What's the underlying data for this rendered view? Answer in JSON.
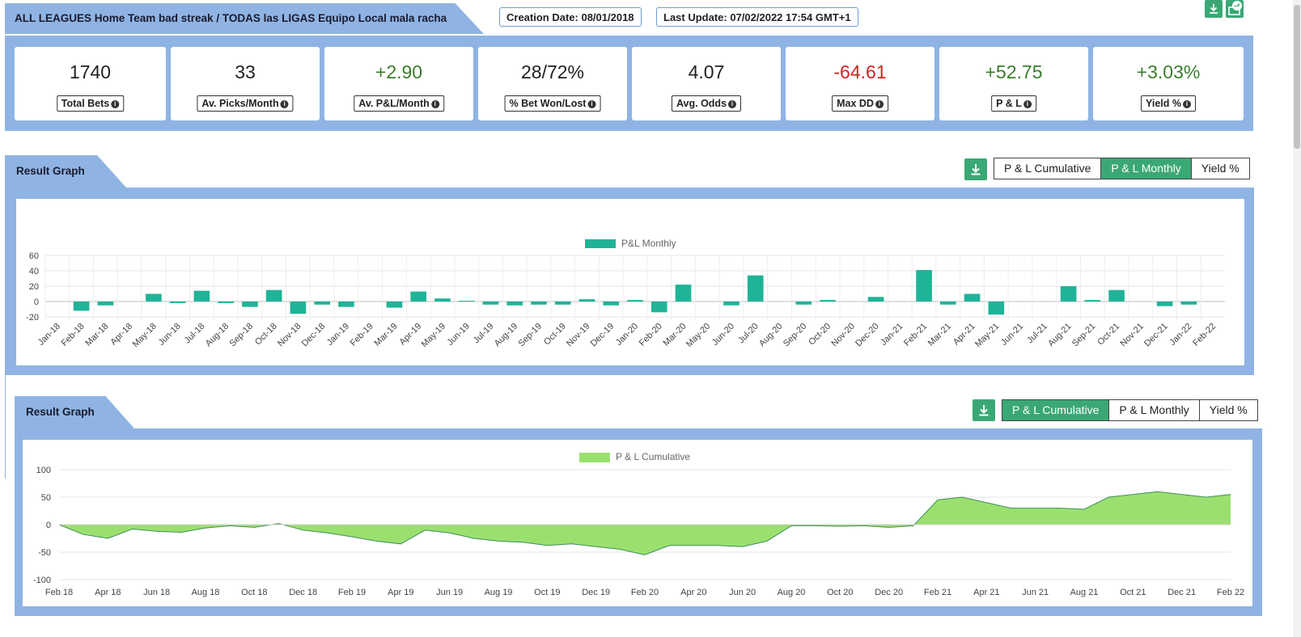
{
  "header": {
    "title": "ALL LEAGUES Home Team bad streak / TODAS las LIGAS Equipo Local mala racha",
    "creation_date": "Creation Date: 08/01/2018",
    "last_update": "Last Update: 07/02/2022 17:54 GMT+1"
  },
  "icons": {
    "download": "download-icon",
    "check": "check-icon",
    "info": "info-icon"
  },
  "colors": {
    "accent": "#3aa874",
    "band": "#8fb4e3",
    "bar": "#1fb497",
    "area": "#9be06f",
    "negative": "#d22121",
    "positive": "#3a7d2c"
  },
  "stats": [
    {
      "value": "1740",
      "label": "Total Bets",
      "color": "#222222"
    },
    {
      "value": "33",
      "label": "Av. Picks/Month",
      "color": "#222222"
    },
    {
      "value": "+2.90",
      "label": "Av. P&L/Month",
      "color": "#3a7d2c"
    },
    {
      "value": "28/72%",
      "label": "% Bet Won/Lost",
      "color": "#222222"
    },
    {
      "value": "4.07",
      "label": "Avg. Odds",
      "color": "#222222"
    },
    {
      "value": "-64.61",
      "label": "Max DD",
      "color": "#d22121"
    },
    {
      "value": "+52.75",
      "label": "P & L",
      "color": "#3a7d2c"
    },
    {
      "value": "+3.03%",
      "label": "Yield %",
      "color": "#3a7d2c"
    }
  ],
  "graph1": {
    "title": "Result Graph",
    "tabs": [
      {
        "label": "P & L Cumulative",
        "active": false
      },
      {
        "label": "P & L Monthly",
        "active": true
      },
      {
        "label": "Yield %",
        "active": false
      }
    ]
  },
  "graph2": {
    "title": "Result Graph",
    "tabs": [
      {
        "label": "P & L Cumulative",
        "active": true
      },
      {
        "label": "P & L Monthly",
        "active": false
      },
      {
        "label": "Yield %",
        "active": false
      }
    ]
  },
  "chart_data": [
    {
      "type": "bar",
      "legend": "P&L Monthly",
      "categories": [
        "Jan-18",
        "Feb-18",
        "Mar-18",
        "Apr-18",
        "May-18",
        "Jun-18",
        "Jul-18",
        "Aug-18",
        "Sep-18",
        "Oct-18",
        "Nov-18",
        "Dec-18",
        "Jan-19",
        "Feb-19",
        "Mar-19",
        "Apr-19",
        "May-19",
        "Jun-19",
        "Jul-19",
        "Aug-19",
        "Sep-19",
        "Oct-19",
        "Nov-19",
        "Dec-19",
        "Jan-20",
        "Feb-20",
        "Mar-20",
        "May-20",
        "Jun-20",
        "Jul-20",
        "Aug-20",
        "Sep-20",
        "Oct-20",
        "Nov-20",
        "Dec-20",
        "Jan-21",
        "Feb-21",
        "Mar-21",
        "Apr-21",
        "May-21",
        "Jun-21",
        "Jul-21",
        "Aug-21",
        "Sep-21",
        "Oct-21",
        "Nov-21",
        "Dec-21",
        "Jan-22",
        "Feb-22"
      ],
      "values": [
        0,
        -12,
        -5,
        0,
        10,
        -2,
        14,
        -2,
        -7,
        15,
        -16,
        -4,
        -7,
        0,
        -8,
        13,
        4,
        1,
        -4,
        -5,
        -4,
        -4,
        3,
        -5,
        2,
        -14,
        22,
        0,
        -5,
        34,
        0,
        -4,
        2,
        0,
        6,
        0,
        41,
        -4,
        10,
        -17,
        0,
        0,
        20,
        2,
        15,
        0,
        -6,
        -4,
        0
      ],
      "yticks": [
        60,
        40,
        20,
        0,
        -20
      ],
      "ylim": [
        -20,
        60
      ]
    },
    {
      "type": "area",
      "legend": "P & L Cumulative",
      "x": [
        "Feb 18",
        "Mar 18",
        "Apr 18",
        "May 18",
        "Jun 18",
        "Jul 18",
        "Aug 18",
        "Sep 18",
        "Oct 18",
        "Nov 18",
        "Dec 18",
        "Jan 19",
        "Feb 19",
        "Mar 19",
        "Apr 19",
        "May 19",
        "Jun 19",
        "Jul 19",
        "Aug 19",
        "Sep 19",
        "Oct 19",
        "Nov 19",
        "Dec 19",
        "Jan 20",
        "Feb 20",
        "Mar 20",
        "Apr 20",
        "May 20",
        "Jun 20",
        "Jul 20",
        "Aug 20",
        "Sep 20",
        "Oct 20",
        "Nov 20",
        "Dec 20",
        "Jan 21",
        "Feb 21",
        "Mar 21",
        "Apr 21",
        "May 21",
        "Jun 21",
        "Jul 21",
        "Aug 21",
        "Sep 21",
        "Oct 21",
        "Nov 21",
        "Dec 21",
        "Jan 22",
        "Feb 22"
      ],
      "y": [
        0,
        -18,
        -25,
        -8,
        -12,
        -14,
        -6,
        -2,
        -5,
        2,
        -10,
        -15,
        -22,
        -30,
        -35,
        -10,
        -15,
        -25,
        -30,
        -32,
        -38,
        -35,
        -40,
        -45,
        -55,
        -38,
        -38,
        -38,
        -40,
        -30,
        -2,
        -2,
        -3,
        -2,
        -5,
        -2,
        45,
        50,
        40,
        30,
        30,
        30,
        28,
        50,
        55,
        60,
        55,
        50,
        55
      ],
      "xticks": [
        "Feb 18",
        "Apr 18",
        "Jun 18",
        "Aug 18",
        "Oct 18",
        "Dec 18",
        "Feb 19",
        "Apr 19",
        "Jun 19",
        "Aug 19",
        "Oct 19",
        "Dec 19",
        "Feb 20",
        "Apr 20",
        "Jun 20",
        "Aug 20",
        "Oct 20",
        "Dec 20",
        "Feb 21",
        "Apr 21",
        "Jun 21",
        "Aug 21",
        "Oct 21",
        "Dec 21",
        "Feb 22"
      ],
      "yticks": [
        100,
        50,
        0,
        -50,
        -100
      ],
      "ylim": [
        -100,
        100
      ]
    }
  ]
}
